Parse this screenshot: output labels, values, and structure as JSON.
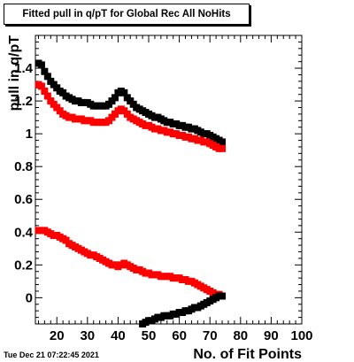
{
  "title": "Fitted pull in q/pT for Global Rec All NoHits",
  "timestamp": "Tue Dec 21 07:22:45 2021",
  "chart_data": {
    "type": "scatter",
    "title": "Fitted pull in q/pT for Global Rec All NoHits",
    "xlabel": "No. of Fit Points",
    "ylabel": "pull in q/pT",
    "xlim": [
      13,
      100
    ],
    "ylim": [
      -0.16,
      1.6
    ],
    "xticks": [
      20,
      30,
      40,
      50,
      60,
      70,
      80,
      90,
      100
    ],
    "yticks": [
      0,
      0.2,
      0.4,
      0.6,
      0.8,
      1,
      1.2,
      1.4
    ],
    "ytick_labels": [
      "0",
      "0.2",
      "0.4",
      "0.6",
      "0.8",
      "1",
      "1.2",
      "1.4"
    ],
    "grid": false,
    "legend": "none",
    "series": [
      {
        "color": "#000000",
        "points": [
          [
            14,
            1.43
          ],
          [
            15,
            1.42
          ],
          [
            16,
            1.38
          ],
          [
            17,
            1.35
          ],
          [
            18,
            1.32
          ],
          [
            19,
            1.3
          ],
          [
            20,
            1.28
          ],
          [
            21,
            1.26
          ],
          [
            22,
            1.25
          ],
          [
            23,
            1.23
          ],
          [
            24,
            1.22
          ],
          [
            25,
            1.21
          ],
          [
            26,
            1.2
          ],
          [
            27,
            1.2
          ],
          [
            28,
            1.19
          ],
          [
            29,
            1.19
          ],
          [
            30,
            1.19
          ],
          [
            31,
            1.18
          ],
          [
            32,
            1.17
          ],
          [
            33,
            1.17
          ],
          [
            34,
            1.17
          ],
          [
            35,
            1.17
          ],
          [
            36,
            1.17
          ],
          [
            37,
            1.18
          ],
          [
            38,
            1.2
          ],
          [
            39,
            1.22
          ],
          [
            40,
            1.25
          ],
          [
            41,
            1.26
          ],
          [
            42,
            1.25
          ],
          [
            43,
            1.22
          ],
          [
            44,
            1.2
          ],
          [
            45,
            1.18
          ],
          [
            46,
            1.16
          ],
          [
            47,
            1.15
          ],
          [
            48,
            1.14
          ],
          [
            49,
            1.13
          ],
          [
            50,
            1.12
          ],
          [
            51,
            1.11
          ],
          [
            52,
            1.1
          ],
          [
            53,
            1.1
          ],
          [
            54,
            1.09
          ],
          [
            55,
            1.08
          ],
          [
            56,
            1.07
          ],
          [
            57,
            1.07
          ],
          [
            58,
            1.06
          ],
          [
            59,
            1.06
          ],
          [
            60,
            1.05
          ],
          [
            61,
            1.05
          ],
          [
            62,
            1.04
          ],
          [
            63,
            1.04
          ],
          [
            64,
            1.03
          ],
          [
            65,
            1.03
          ],
          [
            66,
            1.02
          ],
          [
            67,
            1.01
          ],
          [
            68,
            1.0
          ],
          [
            69,
            1.0
          ],
          [
            70,
            0.99
          ],
          [
            71,
            0.98
          ],
          [
            72,
            0.97
          ],
          [
            73,
            0.96
          ],
          [
            74,
            0.95
          ]
        ]
      },
      {
        "color": "#ff0000",
        "points": [
          [
            14,
            1.3
          ],
          [
            15,
            1.29
          ],
          [
            16,
            1.26
          ],
          [
            17,
            1.23
          ],
          [
            18,
            1.2
          ],
          [
            19,
            1.18
          ],
          [
            20,
            1.16
          ],
          [
            21,
            1.14
          ],
          [
            22,
            1.12
          ],
          [
            23,
            1.11
          ],
          [
            24,
            1.1
          ],
          [
            25,
            1.1
          ],
          [
            26,
            1.09
          ],
          [
            27,
            1.09
          ],
          [
            28,
            1.09
          ],
          [
            29,
            1.08
          ],
          [
            30,
            1.08
          ],
          [
            31,
            1.08
          ],
          [
            32,
            1.07
          ],
          [
            33,
            1.07
          ],
          [
            34,
            1.07
          ],
          [
            35,
            1.07
          ],
          [
            36,
            1.07
          ],
          [
            37,
            1.08
          ],
          [
            38,
            1.1
          ],
          [
            39,
            1.12
          ],
          [
            40,
            1.14
          ],
          [
            41,
            1.15
          ],
          [
            42,
            1.14
          ],
          [
            43,
            1.12
          ],
          [
            44,
            1.1
          ],
          [
            45,
            1.09
          ],
          [
            46,
            1.08
          ],
          [
            47,
            1.07
          ],
          [
            48,
            1.06
          ],
          [
            49,
            1.05
          ],
          [
            50,
            1.05
          ],
          [
            51,
            1.04
          ],
          [
            52,
            1.03
          ],
          [
            53,
            1.03
          ],
          [
            54,
            1.02
          ],
          [
            55,
            1.02
          ],
          [
            56,
            1.01
          ],
          [
            57,
            1.01
          ],
          [
            58,
            1.0
          ],
          [
            59,
            1.0
          ],
          [
            60,
            0.99
          ],
          [
            61,
            0.99
          ],
          [
            62,
            0.98
          ],
          [
            63,
            0.98
          ],
          [
            64,
            0.97
          ],
          [
            65,
            0.97
          ],
          [
            66,
            0.96
          ],
          [
            67,
            0.96
          ],
          [
            68,
            0.95
          ],
          [
            69,
            0.95
          ],
          [
            70,
            0.94
          ],
          [
            71,
            0.93
          ],
          [
            72,
            0.92
          ],
          [
            73,
            0.91
          ],
          [
            74,
            0.91
          ]
        ]
      },
      {
        "color": "#ff0000",
        "points": [
          [
            14,
            0.41
          ],
          [
            15,
            0.41
          ],
          [
            16,
            0.41
          ],
          [
            17,
            0.4
          ],
          [
            18,
            0.39
          ],
          [
            19,
            0.38
          ],
          [
            20,
            0.38
          ],
          [
            21,
            0.37
          ],
          [
            22,
            0.36
          ],
          [
            23,
            0.35
          ],
          [
            24,
            0.33
          ],
          [
            25,
            0.32
          ],
          [
            26,
            0.31
          ],
          [
            27,
            0.3
          ],
          [
            28,
            0.29
          ],
          [
            29,
            0.28
          ],
          [
            30,
            0.27
          ],
          [
            31,
            0.26
          ],
          [
            32,
            0.26
          ],
          [
            33,
            0.25
          ],
          [
            34,
            0.24
          ],
          [
            35,
            0.23
          ],
          [
            36,
            0.22
          ],
          [
            37,
            0.21
          ],
          [
            38,
            0.2
          ],
          [
            39,
            0.2
          ],
          [
            40,
            0.19
          ],
          [
            41,
            0.2
          ],
          [
            42,
            0.21
          ],
          [
            43,
            0.2
          ],
          [
            44,
            0.19
          ],
          [
            45,
            0.18
          ],
          [
            46,
            0.17
          ],
          [
            47,
            0.17
          ],
          [
            48,
            0.16
          ],
          [
            49,
            0.15
          ],
          [
            50,
            0.15
          ],
          [
            51,
            0.14
          ],
          [
            52,
            0.14
          ],
          [
            53,
            0.14
          ],
          [
            54,
            0.13
          ],
          [
            55,
            0.13
          ],
          [
            56,
            0.13
          ],
          [
            57,
            0.13
          ],
          [
            58,
            0.12
          ],
          [
            59,
            0.12
          ],
          [
            60,
            0.12
          ],
          [
            61,
            0.11
          ],
          [
            62,
            0.11
          ],
          [
            63,
            0.1
          ],
          [
            64,
            0.1
          ],
          [
            65,
            0.09
          ],
          [
            66,
            0.08
          ],
          [
            67,
            0.07
          ],
          [
            68,
            0.06
          ],
          [
            69,
            0.05
          ],
          [
            70,
            0.04
          ],
          [
            71,
            0.03
          ],
          [
            72,
            0.02
          ],
          [
            73,
            0.02
          ],
          [
            74,
            0.01
          ]
        ]
      },
      {
        "color": "#000000",
        "points": [
          [
            48,
            -0.16
          ],
          [
            49,
            -0.15
          ],
          [
            50,
            -0.14
          ],
          [
            51,
            -0.14
          ],
          [
            52,
            -0.13
          ],
          [
            53,
            -0.12
          ],
          [
            54,
            -0.12
          ],
          [
            55,
            -0.11
          ],
          [
            56,
            -0.11
          ],
          [
            57,
            -0.11
          ],
          [
            58,
            -0.1
          ],
          [
            59,
            -0.1
          ],
          [
            60,
            -0.09
          ],
          [
            61,
            -0.09
          ],
          [
            62,
            -0.08
          ],
          [
            63,
            -0.08
          ],
          [
            64,
            -0.07
          ],
          [
            65,
            -0.06
          ],
          [
            66,
            -0.06
          ],
          [
            67,
            -0.05
          ],
          [
            68,
            -0.04
          ],
          [
            69,
            -0.03
          ],
          [
            70,
            -0.02
          ],
          [
            71,
            -0.01
          ],
          [
            72,
            0.0
          ],
          [
            73,
            0.01
          ],
          [
            74,
            0.01
          ]
        ]
      }
    ]
  }
}
